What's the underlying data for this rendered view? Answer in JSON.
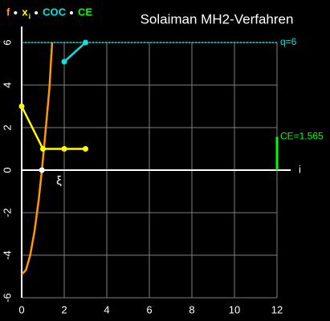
{
  "chart_data": {
    "type": "line",
    "title": "Solaiman MH2-Verfahren",
    "xlim": [
      0,
      12
    ],
    "ylim": [
      -6,
      6
    ],
    "xticks": [
      0,
      2,
      4,
      6,
      8,
      10,
      12
    ],
    "yticks": [
      6,
      4,
      2,
      0,
      -2,
      -4,
      -6
    ],
    "x_label": "i",
    "grid": true,
    "series": [
      {
        "name": "f",
        "color": "#ff9900",
        "x": [
          0,
          0.2,
          0.4,
          0.6,
          0.8,
          0.95,
          1.1,
          1.3,
          1.43
        ],
        "values": [
          -4.9,
          -4.7,
          -4.0,
          -2.9,
          -1.4,
          0,
          1.6,
          3.8,
          6
        ]
      },
      {
        "name": "x",
        "subscript": "i",
        "color": "#ffff00",
        "markers": true,
        "x": [
          0,
          1,
          2,
          3
        ],
        "values": [
          3,
          1,
          1,
          1
        ]
      },
      {
        "name": "COC",
        "color": "#00e5e5",
        "markers": true,
        "x": [
          2,
          3
        ],
        "values": [
          5.1,
          6
        ]
      },
      {
        "name": "CE",
        "type": "bar",
        "color": "#00ff00",
        "x": [
          12
        ],
        "values": [
          1.565
        ],
        "value_labels": [
          "CE=1.565"
        ]
      }
    ],
    "reference_line": {
      "value": 6,
      "label": "q=6",
      "color": "#00e5e5"
    },
    "root": {
      "x": 0.95,
      "value": 0,
      "label": "ξ"
    }
  }
}
